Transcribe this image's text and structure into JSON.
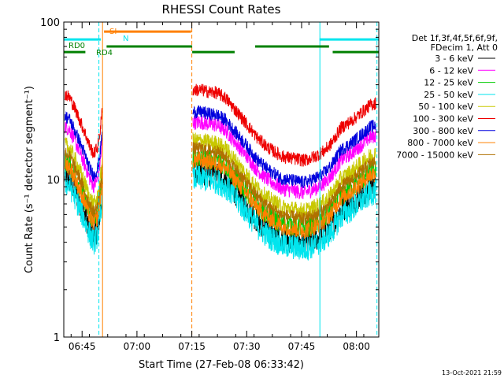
{
  "chart_data": {
    "type": "line",
    "title": "RHESSI Count Rates",
    "ylabel": "Count Rate (s⁻¹ detector segment⁻¹)",
    "xlabel": "Start Time (27-Feb-08 06:33:42)",
    "yscale": "log",
    "ylim": [
      1,
      100
    ],
    "xlim_minutes": [
      6.3,
      92.4
    ],
    "x_ticks": [
      {
        "m": 11.3,
        "label": "06:45"
      },
      {
        "m": 26.3,
        "label": "07:00"
      },
      {
        "m": 41.3,
        "label": "07:15"
      },
      {
        "m": 56.3,
        "label": "07:30"
      },
      {
        "m": 71.3,
        "label": "07:45"
      },
      {
        "m": 86.3,
        "label": "08:00"
      }
    ],
    "y_ticks": [
      {
        "v": 1,
        "label": "1"
      },
      {
        "v": 10,
        "label": "10"
      },
      {
        "v": 100,
        "label": "100"
      }
    ],
    "legend_header": [
      "Det 1f,3f,4f,5f,6f,9f,",
      "FDecim 1, Att 0"
    ],
    "series": [
      {
        "name": "3 - 6 keV",
        "color": "#000000",
        "scale": 0.6,
        "noise": 0.12
      },
      {
        "name": "6 - 12 keV",
        "color": "#ff00ff",
        "scale": 1.25,
        "noise": 0.07
      },
      {
        "name": "12 - 25 keV",
        "color": "#00cc00",
        "scale": 0.75,
        "noise": 0.1
      },
      {
        "name": "25 - 50 keV",
        "color": "#00e5ee",
        "scale": 0.55,
        "noise": 0.12
      },
      {
        "name": "50 - 100 keV",
        "color": "#c8c800",
        "scale": 0.95,
        "noise": 0.08
      },
      {
        "name": "100 - 300 keV",
        "color": "#ee0000",
        "scale": 2.0,
        "noise": 0.06
      },
      {
        "name": "300 - 800 keV",
        "color": "#0000dd",
        "scale": 1.45,
        "noise": 0.06
      },
      {
        "name": "800 - 7000 keV",
        "color": "#ff8000",
        "scale": 0.72,
        "noise": 0.08
      },
      {
        "name": "7000 - 15000 keV",
        "color": "#b07000",
        "scale": 0.85,
        "noise": 0.06
      }
    ],
    "base_profile": [
      [
        6.6,
        17.5
      ],
      [
        8.0,
        16.5
      ],
      [
        10.0,
        13.0
      ],
      [
        12.0,
        10.0
      ],
      [
        13.5,
        8.0
      ],
      [
        14.5,
        7.3
      ],
      [
        15.5,
        8.0
      ],
      [
        16.2,
        10.0
      ],
      [
        16.9,
        14.5
      ],
      [
        41.6,
        18.5
      ],
      [
        44.0,
        18.5
      ],
      [
        46.0,
        18.0
      ],
      [
        48.0,
        17.8
      ],
      [
        50.5,
        16.5
      ],
      [
        53.0,
        14.0
      ],
      [
        56.0,
        11.5
      ],
      [
        59.0,
        9.3
      ],
      [
        62.0,
        8.0
      ],
      [
        66.0,
        7.0
      ],
      [
        69.0,
        6.8
      ],
      [
        72.0,
        6.6
      ],
      [
        75.0,
        7.0
      ],
      [
        77.5,
        7.6
      ],
      [
        79.5,
        8.5
      ],
      [
        82.0,
        10.6
      ],
      [
        85.0,
        11.8
      ],
      [
        88.0,
        13.5
      ],
      [
        90.0,
        14.8
      ],
      [
        91.6,
        15.3
      ]
    ],
    "gaps_minutes": [
      [
        16.9,
        41.6
      ]
    ],
    "flag_bars": [
      {
        "label": "SI",
        "color": "#ff8000",
        "segments": [
          [
            17.3,
            41.1
          ]
        ],
        "value": 87
      },
      {
        "label": "N",
        "color": "#00e5ee",
        "segments": [
          [
            6.3,
            16.4
          ],
          [
            76.2,
            92.4
          ]
        ],
        "value": 77.5
      },
      {
        "label": "",
        "color": "#008000",
        "segments": [
          [
            18.0,
            41.4
          ],
          [
            58.6,
            78.8
          ]
        ],
        "value": 70
      },
      {
        "label": "RD0",
        "color": "#008000",
        "segments": [
          [
            6.3,
            12.2
          ],
          [
            41.4,
            53.0
          ],
          [
            79.8,
            92.4
          ]
        ],
        "value": 64.5
      },
      {
        "label": "RD4",
        "color": "#008000",
        "segments": [],
        "value": 64.5
      }
    ],
    "vertical_markers": [
      {
        "m": 6.3,
        "color": "#00e5ee",
        "dash": false
      },
      {
        "m": 15.9,
        "color": "#00e5ee",
        "dash": true
      },
      {
        "m": 16.9,
        "color": "#ff8000",
        "dash": false
      },
      {
        "m": 41.3,
        "color": "#ff8000",
        "dash": true
      },
      {
        "m": 76.3,
        "color": "#00e5ee",
        "dash": false
      },
      {
        "m": 91.9,
        "color": "#00e5ee",
        "dash": true
      }
    ],
    "footer_timestamp": "13-Oct-2021 21:59"
  }
}
